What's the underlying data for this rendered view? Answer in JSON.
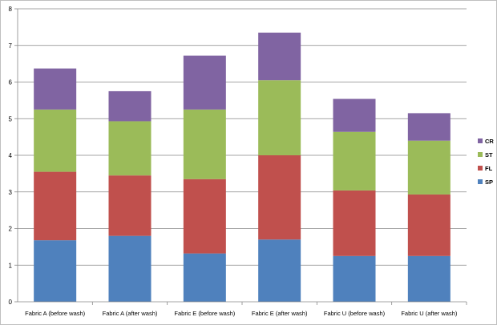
{
  "chart_data": {
    "type": "bar",
    "stacked": true,
    "categories": [
      "Fabric A (before wash)",
      "Fabric A (after wash)",
      "Fabric E (before wash)",
      "Fabric E (after wash)",
      "Fabric U (before wash)",
      "Fabric U (after wash)"
    ],
    "series": [
      {
        "name": "SP",
        "color": "#4f81bd",
        "values": [
          1.68,
          1.8,
          1.32,
          1.7,
          1.25,
          1.25
        ]
      },
      {
        "name": "FL",
        "color": "#c0504d",
        "values": [
          1.87,
          1.65,
          2.03,
          2.3,
          1.79,
          1.68
        ]
      },
      {
        "name": "ST",
        "color": "#9bbb59",
        "values": [
          1.7,
          1.48,
          1.9,
          2.05,
          1.6,
          1.47
        ]
      },
      {
        "name": "CR",
        "color": "#8064a2",
        "values": [
          1.12,
          0.82,
          1.47,
          1.3,
          0.9,
          0.75
        ]
      }
    ],
    "yticks": [
      "0",
      "1",
      "2",
      "3",
      "4",
      "5",
      "6",
      "7",
      "8"
    ],
    "ylim": [
      0,
      8
    ],
    "grid": true,
    "legend_position": "right",
    "legend_order": [
      "CR",
      "ST",
      "FL",
      "SP"
    ],
    "title": "",
    "xlabel": "",
    "ylabel": ""
  }
}
